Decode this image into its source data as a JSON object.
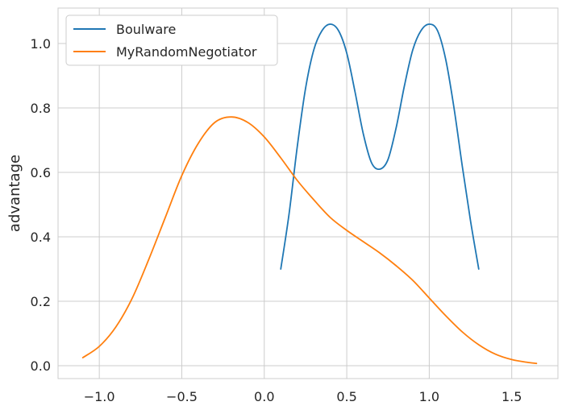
{
  "chart_data": {
    "type": "line",
    "title": "",
    "xlabel": "",
    "ylabel": "advantage",
    "xlim": [
      -1.25,
      1.78
    ],
    "ylim": [
      -0.04,
      1.11
    ],
    "xticks": [
      -1.0,
      -0.5,
      0.0,
      0.5,
      1.0,
      1.5
    ],
    "xtick_labels": [
      "−1.0",
      "−0.5",
      "0.0",
      "0.5",
      "1.0",
      "1.5"
    ],
    "yticks": [
      0.0,
      0.2,
      0.4,
      0.6,
      0.8,
      1.0
    ],
    "ytick_labels": [
      "0.0",
      "0.2",
      "0.4",
      "0.6",
      "0.8",
      "1.0"
    ],
    "grid": true,
    "legend_position": "top-left",
    "series": [
      {
        "name": "Boulware",
        "color": "#1f77b4",
        "points": [
          [
            0.1,
            0.3
          ],
          [
            0.15,
            0.47
          ],
          [
            0.2,
            0.68
          ],
          [
            0.25,
            0.86
          ],
          [
            0.3,
            0.98
          ],
          [
            0.35,
            1.04
          ],
          [
            0.4,
            1.06
          ],
          [
            0.45,
            1.04
          ],
          [
            0.5,
            0.97
          ],
          [
            0.55,
            0.85
          ],
          [
            0.6,
            0.72
          ],
          [
            0.65,
            0.63
          ],
          [
            0.7,
            0.61
          ],
          [
            0.75,
            0.64
          ],
          [
            0.8,
            0.74
          ],
          [
            0.85,
            0.87
          ],
          [
            0.9,
            0.98
          ],
          [
            0.95,
            1.04
          ],
          [
            1.0,
            1.06
          ],
          [
            1.05,
            1.04
          ],
          [
            1.1,
            0.95
          ],
          [
            1.15,
            0.8
          ],
          [
            1.2,
            0.62
          ],
          [
            1.25,
            0.45
          ],
          [
            1.3,
            0.3
          ]
        ]
      },
      {
        "name": "MyRandomNegotiator",
        "color": "#ff7f0e",
        "points": [
          [
            -1.1,
            0.025
          ],
          [
            -1.0,
            0.06
          ],
          [
            -0.9,
            0.12
          ],
          [
            -0.8,
            0.21
          ],
          [
            -0.7,
            0.33
          ],
          [
            -0.6,
            0.46
          ],
          [
            -0.5,
            0.59
          ],
          [
            -0.4,
            0.69
          ],
          [
            -0.3,
            0.755
          ],
          [
            -0.2,
            0.772
          ],
          [
            -0.1,
            0.755
          ],
          [
            0.0,
            0.71
          ],
          [
            0.1,
            0.645
          ],
          [
            0.2,
            0.575
          ],
          [
            0.3,
            0.515
          ],
          [
            0.4,
            0.46
          ],
          [
            0.5,
            0.42
          ],
          [
            0.6,
            0.385
          ],
          [
            0.7,
            0.35
          ],
          [
            0.8,
            0.31
          ],
          [
            0.9,
            0.265
          ],
          [
            1.0,
            0.21
          ],
          [
            1.1,
            0.155
          ],
          [
            1.2,
            0.105
          ],
          [
            1.3,
            0.065
          ],
          [
            1.4,
            0.036
          ],
          [
            1.5,
            0.019
          ],
          [
            1.6,
            0.01
          ],
          [
            1.65,
            0.007
          ]
        ]
      }
    ]
  }
}
